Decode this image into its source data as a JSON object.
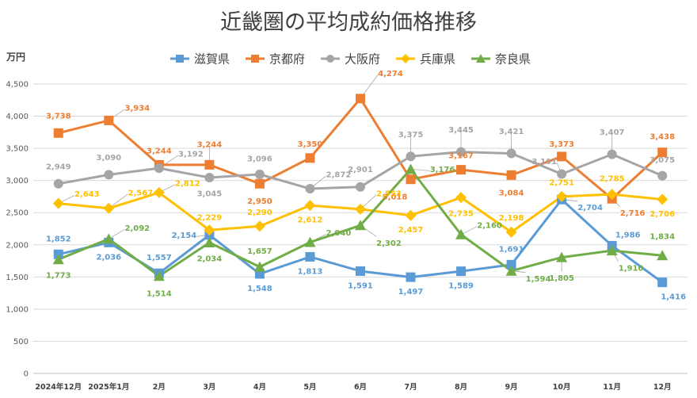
{
  "chart_data": {
    "type": "line",
    "title": "近畿圏の平均成約価格推移",
    "ylabel": "万円",
    "ylim": [
      0,
      4500
    ],
    "yticks": [
      "0",
      "500",
      "1,000",
      "1,500",
      "2,000",
      "2,500",
      "3,000",
      "3,500",
      "4,000",
      "4,500"
    ],
    "grid": true,
    "legend_position": "top",
    "categories": [
      "2024年12月",
      "2025年1月",
      "2月",
      "3月",
      "4月",
      "5月",
      "6月",
      "7月",
      "8月",
      "9月",
      "10月",
      "11月",
      "12月"
    ],
    "series": [
      {
        "name": "滋賀県",
        "color": "#5b9bd5",
        "marker": "square",
        "values": [
          1852,
          2036,
          1557,
          2154,
          1548,
          1813,
          1591,
          1497,
          1589,
          1691,
          2704,
          1986,
          1416
        ],
        "labels": [
          "1,852",
          "2,036",
          "1,557",
          "2,154",
          "1,548",
          "1,813",
          "1,591",
          "1,497",
          "1,589",
          "1,691",
          "2,704",
          "1,986",
          "1,416"
        ]
      },
      {
        "name": "京都府",
        "color": "#ed7d31",
        "marker": "square",
        "values": [
          3738,
          3934,
          3244,
          3244,
          2950,
          3350,
          4274,
          3018,
          3167,
          3084,
          3373,
          2716,
          3438
        ],
        "labels": [
          "3,738",
          "3,934",
          "3,244",
          "3,244",
          "2,950",
          "3,350",
          "4,274",
          "3,018",
          "3,167",
          "3,084",
          "3,373",
          "2,716",
          "3,438"
        ]
      },
      {
        "name": "大阪府",
        "color": "#a5a5a5",
        "marker": "circle",
        "values": [
          2949,
          3090,
          3192,
          3045,
          3096,
          2872,
          2901,
          3375,
          3445,
          3421,
          3101,
          3407,
          3075
        ],
        "labels": [
          "2,949",
          "3,090",
          "3,192",
          "3,045",
          "3,096",
          "2,872",
          "2,901",
          "3,375",
          "3,445",
          "3,421",
          "3,101",
          "3,407",
          "3,075"
        ]
      },
      {
        "name": "兵庫県",
        "color": "#ffc000",
        "marker": "diamond",
        "values": [
          2643,
          2567,
          2812,
          2229,
          2290,
          2612,
          2553,
          2457,
          2735,
          2198,
          2751,
          2785,
          2706
        ],
        "labels": [
          "2,643",
          "2,567",
          "2,812",
          "2,229",
          "2,290",
          "2,612",
          "2,553",
          "2,457",
          "2,735",
          "2,198",
          "2,751",
          "2,785",
          "2,706"
        ]
      },
      {
        "name": "奈良県",
        "color": "#70ad47",
        "marker": "triangle",
        "values": [
          1773,
          2092,
          1514,
          2034,
          1657,
          2040,
          2302,
          3176,
          2160,
          1594,
          1805,
          1910,
          1834
        ],
        "labels": [
          "1,773",
          "2,092",
          "1,514",
          "2,034",
          "1,657",
          "2,040",
          "2,302",
          "3,176",
          "2,160",
          "1,594",
          "1,805",
          "1,910",
          "1,834"
        ]
      }
    ]
  }
}
